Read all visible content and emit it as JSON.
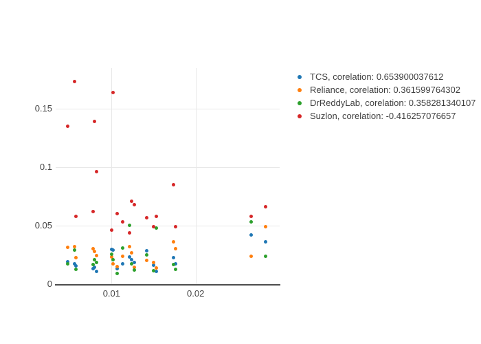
{
  "chart_data": {
    "type": "scatter",
    "title": "",
    "xlabel": "",
    "ylabel": "",
    "grid": true,
    "legend_position": "right",
    "xlim": [
      0.00335,
      0.03
    ],
    "ylim": [
      0,
      0.1847
    ],
    "marker_size_px": 5,
    "colors": {
      "background": "#ffffff",
      "grid": "#e8e8e8",
      "axis_line": "#4d4d4d",
      "tick_text": "#444444",
      "legend_text": "#3f3f3f"
    },
    "xticks": [
      {
        "value": 0.01,
        "label": "0.01"
      },
      {
        "value": 0.02,
        "label": "0.02"
      }
    ],
    "yticks": [
      {
        "value": 0,
        "label": "0"
      },
      {
        "value": 0.05,
        "label": "0.05"
      },
      {
        "value": 0.1,
        "label": "0.1"
      },
      {
        "value": 0.15,
        "label": "0.15"
      }
    ],
    "x": [
      0.0048,
      0.0056,
      0.0058,
      0.0078,
      0.008,
      0.0082,
      0.01,
      0.0102,
      0.0107,
      0.0113,
      0.0121,
      0.0124,
      0.0127,
      0.0142,
      0.015,
      0.0153,
      0.0174,
      0.0176,
      0.0266,
      0.0283
    ],
    "series": [
      {
        "name": "TCS",
        "correlation": "0.653900037612",
        "legend_label": "TCS, corelation: 0.653900037612",
        "color": "#1f77b4",
        "y": [
          0.019,
          0.0175,
          0.0156,
          0.0133,
          0.0145,
          0.011,
          0.0295,
          0.029,
          0.0133,
          0.0171,
          0.0235,
          0.0206,
          0.0185,
          0.0285,
          0.0164,
          0.0106,
          0.0224,
          0.0171,
          0.042,
          0.036
        ]
      },
      {
        "name": "Reliance",
        "correlation": "0.361599764302",
        "legend_label": "Reliance, corelation: 0.361599764302",
        "color": "#ff7f0e",
        "y": [
          0.0312,
          0.0318,
          0.0227,
          0.0305,
          0.0277,
          0.0243,
          0.0231,
          0.0173,
          0.015,
          0.0241,
          0.0318,
          0.0265,
          0.0147,
          0.0202,
          0.0185,
          0.0139,
          0.0359,
          0.03,
          0.024,
          0.049
        ]
      },
      {
        "name": "DrReddyLab",
        "correlation": "0.358281340107",
        "legend_label": "DrReddyLab, corelation: 0.358281340107",
        "color": "#2ca02c",
        "y": [
          0.0175,
          0.0289,
          0.0125,
          0.0168,
          0.0208,
          0.0185,
          0.0254,
          0.0208,
          0.0092,
          0.0306,
          0.0503,
          0.0173,
          0.0118,
          0.025,
          0.0116,
          0.048,
          0.0168,
          0.0124,
          0.053,
          0.024
        ]
      },
      {
        "name": "Suzlon",
        "correlation": "-0.416257076657",
        "legend_label": "Suzlon, corelation: -0.416257076657",
        "color": "#d62728",
        "y": [
          0.135,
          0.173,
          0.058,
          0.062,
          0.139,
          0.096,
          0.046,
          0.164,
          0.06,
          0.053,
          0.044,
          0.071,
          0.068,
          0.057,
          0.049,
          0.058,
          0.085,
          0.049,
          0.058,
          0.066
        ]
      }
    ]
  }
}
